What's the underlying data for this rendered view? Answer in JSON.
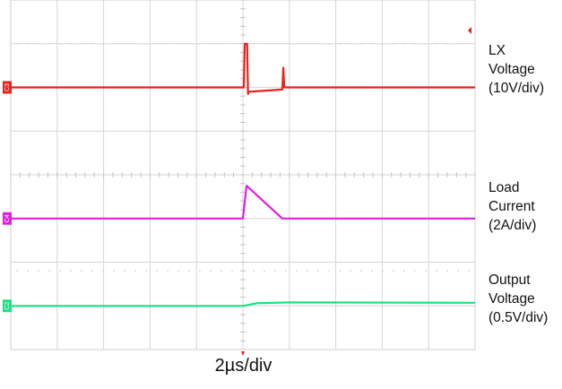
{
  "chart_data": {
    "type": "line",
    "time_per_div": "2µs/div",
    "grid": {
      "h_divisions": 10,
      "v_divisions": 8,
      "dotted_reference_lines": true
    },
    "channels": [
      {
        "tag": "C3",
        "label": "LX\nVoltage\n(10V/div)",
        "color": "#e8221c",
        "t_div": [
          0,
          5.02,
          5.04,
          5.09,
          5.11,
          5.13,
          5.85,
          5.87,
          5.89,
          5.93,
          10
        ],
        "level_div": [
          6.0,
          6.0,
          7.0,
          7.0,
          5.85,
          5.9,
          5.95,
          6.45,
          6.0,
          6.0,
          6.0
        ]
      },
      {
        "tag": "C4",
        "label": "Load\nCurrent\n(2A/div)",
        "color": "#e020e0",
        "t_div": [
          0,
          5.0,
          5.08,
          5.85,
          10
        ],
        "level_div": [
          3.0,
          3.0,
          3.75,
          3.0,
          3.0
        ]
      },
      {
        "tag": "C2",
        "label": "Output\nVoltage\n(0.5V/div)",
        "color": "#1ee080",
        "t_div": [
          0,
          5.0,
          5.3,
          6.0,
          10
        ],
        "level_div": [
          1.0,
          1.0,
          1.06,
          1.08,
          1.07
        ]
      }
    ]
  }
}
